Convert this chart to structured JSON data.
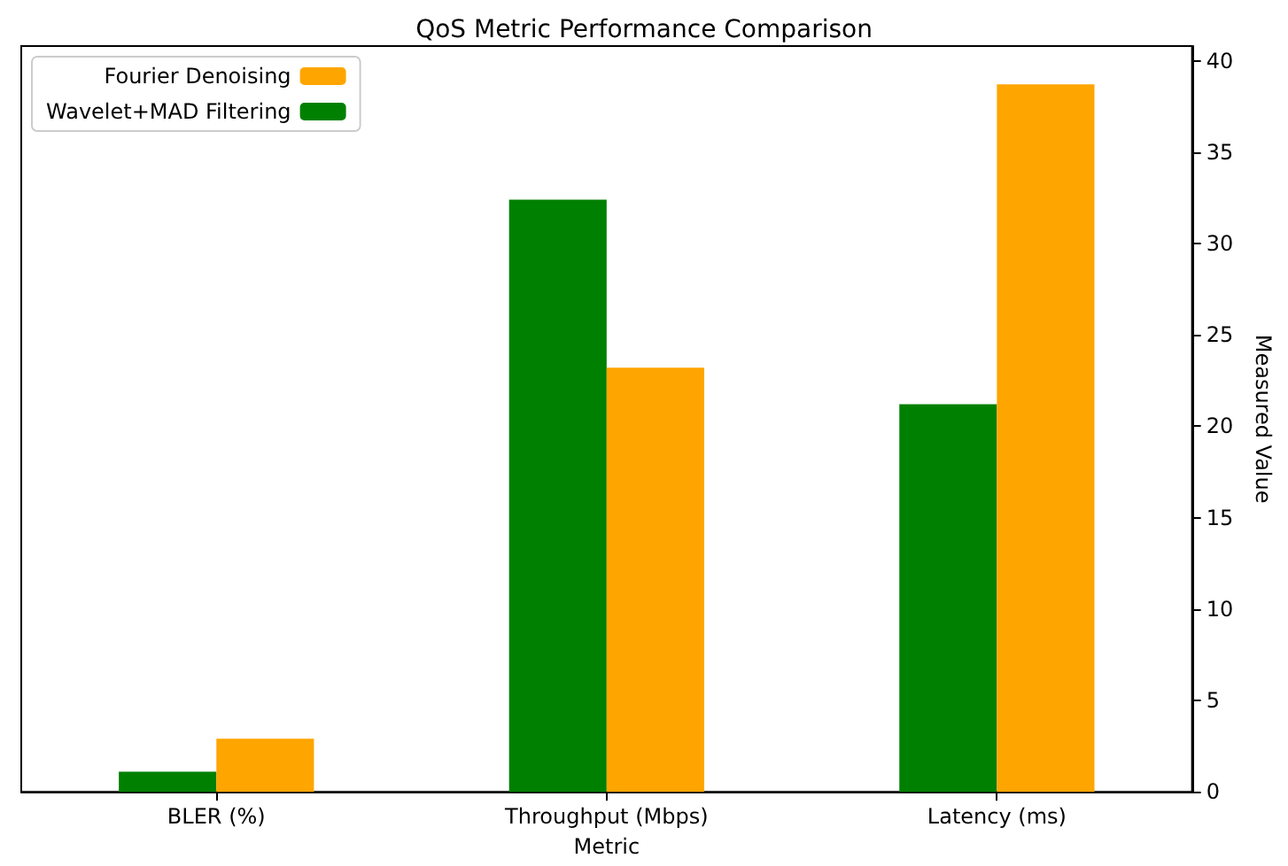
{
  "chart_data": {
    "type": "bar",
    "title": "QoS Metric Performance Comparison",
    "xlabel": "Metric",
    "ylabel": "Measured Value",
    "categories": [
      "BLER (%)",
      "Throughput (Mbps)",
      "Latency (ms)"
    ],
    "series": [
      {
        "name": "Wavelet+MAD Filtering",
        "color": "#008000",
        "values": [
          1.1,
          32.4,
          21.2
        ]
      },
      {
        "name": "Fourier Denoising",
        "color": "#ffa500",
        "values": [
          2.9,
          23.2,
          38.7
        ]
      }
    ],
    "ylim": [
      0,
      40.8
    ],
    "yticks": [
      0,
      5,
      10,
      15,
      20,
      25,
      30,
      35,
      40
    ],
    "grid": false,
    "legend": "top left"
  }
}
